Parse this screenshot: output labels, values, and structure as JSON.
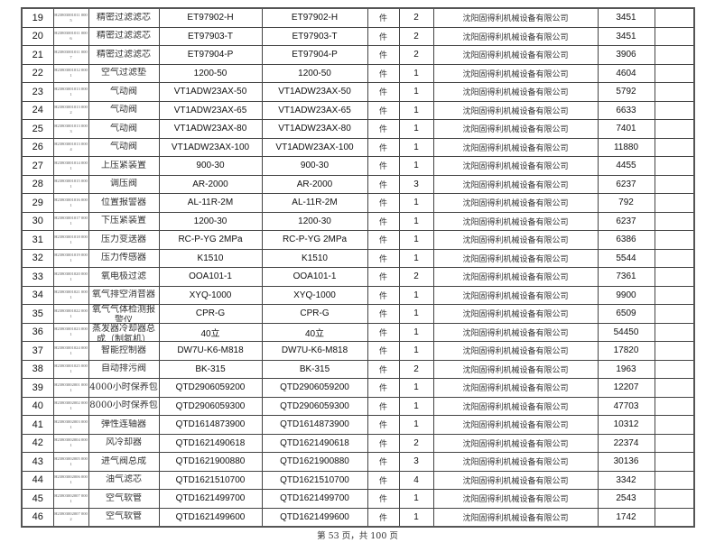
{
  "rows": [
    {
      "no": "19",
      "code": "H23803001011 0005",
      "name": "精密过滤滤芯",
      "model": "ET97902-H",
      "spec": "ET97902-H",
      "unit": "件",
      "qty": "2",
      "supplier": "沈阳固得利机械设备有限公司",
      "price": "3451",
      "note": ""
    },
    {
      "no": "20",
      "code": "H23803001011 0006",
      "name": "精密过滤滤芯",
      "model": "ET97903-T",
      "spec": "ET97903-T",
      "unit": "件",
      "qty": "2",
      "supplier": "沈阳固得利机械设备有限公司",
      "price": "3451",
      "note": ""
    },
    {
      "no": "21",
      "code": "H23803001011 0007",
      "name": "精密过滤滤芯",
      "model": "ET97904-P",
      "spec": "ET97904-P",
      "unit": "件",
      "qty": "2",
      "supplier": "沈阳固得利机械设备有限公司",
      "price": "3906",
      "note": ""
    },
    {
      "no": "22",
      "code": "H23803001012 0001",
      "name": "空气过滤垫",
      "model": "1200-50",
      "spec": "1200-50",
      "unit": "件",
      "qty": "1",
      "supplier": "沈阳固得利机械设备有限公司",
      "price": "4604",
      "note": ""
    },
    {
      "no": "23",
      "code": "H23803001013 0001",
      "name": "气动阀",
      "model": "VT1ADW23AX-50",
      "spec": "VT1ADW23AX-50",
      "unit": "件",
      "qty": "1",
      "supplier": "沈阳固得利机械设备有限公司",
      "price": "5792",
      "note": ""
    },
    {
      "no": "24",
      "code": "H23803001013 0002",
      "name": "气动阀",
      "model": "VT1ADW23AX-65",
      "spec": "VT1ADW23AX-65",
      "unit": "件",
      "qty": "1",
      "supplier": "沈阳固得利机械设备有限公司",
      "price": "6633",
      "note": ""
    },
    {
      "no": "25",
      "code": "H23803001013 0003",
      "name": "气动阀",
      "model": "VT1ADW23AX-80",
      "spec": "VT1ADW23AX-80",
      "unit": "件",
      "qty": "1",
      "supplier": "沈阳固得利机械设备有限公司",
      "price": "7401",
      "note": ""
    },
    {
      "no": "26",
      "code": "H23803001013 0004",
      "name": "气动阀",
      "model": "VT1ADW23AX-100",
      "spec": "VT1ADW23AX-100",
      "unit": "件",
      "qty": "1",
      "supplier": "沈阳固得利机械设备有限公司",
      "price": "11880",
      "note": ""
    },
    {
      "no": "27",
      "code": "H23803001014 0001",
      "name": "上压紧装置",
      "model": "900-30",
      "spec": "900-30",
      "unit": "件",
      "qty": "1",
      "supplier": "沈阳固得利机械设备有限公司",
      "price": "4455",
      "note": ""
    },
    {
      "no": "28",
      "code": "H23803001015 0001",
      "name": "调压阀",
      "model": "AR-2000",
      "spec": "AR-2000",
      "unit": "件",
      "qty": "3",
      "supplier": "沈阳固得利机械设备有限公司",
      "price": "6237",
      "note": ""
    },
    {
      "no": "29",
      "code": "H23803001016 0001",
      "name": "位置报警器",
      "model": "AL-11R-2M",
      "spec": "AL-11R-2M",
      "unit": "件",
      "qty": "1",
      "supplier": "沈阳固得利机械设备有限公司",
      "price": "792",
      "note": ""
    },
    {
      "no": "30",
      "code": "H23803001017 0001",
      "name": "下压紧装置",
      "model": "1200-30",
      "spec": "1200-30",
      "unit": "件",
      "qty": "1",
      "supplier": "沈阳固得利机械设备有限公司",
      "price": "6237",
      "note": ""
    },
    {
      "no": "31",
      "code": "H23803001018 0001",
      "name": "压力变送器",
      "model": "RC-P-YG 2MPa",
      "spec": "RC-P-YG 2MPa",
      "unit": "件",
      "qty": "1",
      "supplier": "沈阳固得利机械设备有限公司",
      "price": "6386",
      "note": ""
    },
    {
      "no": "32",
      "code": "H23803001019 0001",
      "name": "压力传感器",
      "model": "K1510",
      "spec": "K1510",
      "unit": "件",
      "qty": "1",
      "supplier": "沈阳固得利机械设备有限公司",
      "price": "5544",
      "note": ""
    },
    {
      "no": "33",
      "code": "H23803001020 0001",
      "name": "氧电极过滤",
      "model": "OOA101-1",
      "spec": "OOA101-1",
      "unit": "件",
      "qty": "2",
      "supplier": "沈阳固得利机械设备有限公司",
      "price": "7361",
      "note": ""
    },
    {
      "no": "34",
      "code": "H23803001021 0001",
      "name": "氧气排空消音器",
      "model": "XYQ-1000",
      "spec": "XYQ-1000",
      "unit": "件",
      "qty": "1",
      "supplier": "沈阳固得利机械设备有限公司",
      "price": "9900",
      "note": ""
    },
    {
      "no": "35",
      "code": "H23803001022 0001",
      "name": "氧气气体检测报警仪",
      "model": "CPR-G",
      "spec": "CPR-G",
      "unit": "件",
      "qty": "1",
      "supplier": "沈阳固得利机械设备有限公司",
      "price": "6509",
      "note": ""
    },
    {
      "no": "36",
      "code": "H23803001023 0001",
      "name": "蒸发器冷却器总成（制氮机）",
      "model": "40立",
      "spec": "40立",
      "unit": "件",
      "qty": "1",
      "supplier": "沈阳固得利机械设备有限公司",
      "price": "54450",
      "note": ""
    },
    {
      "no": "37",
      "code": "H23803001024 0001",
      "name": "智能控制器",
      "model": "DW7U-K6-M818",
      "spec": "DW7U-K6-M818",
      "unit": "件",
      "qty": "1",
      "supplier": "沈阳固得利机械设备有限公司",
      "price": "17820",
      "note": ""
    },
    {
      "no": "38",
      "code": "H23803001025 0001",
      "name": "自动排污阀",
      "model": "BK-315",
      "spec": "BK-315",
      "unit": "件",
      "qty": "2",
      "supplier": "沈阳固得利机械设备有限公司",
      "price": "1963",
      "note": ""
    },
    {
      "no": "39",
      "code": "H23803002001 0001",
      "name": "4000小时保养包",
      "model": "QTD2906059200",
      "spec": "QTD2906059200",
      "unit": "件",
      "qty": "1",
      "supplier": "沈阳固得利机械设备有限公司",
      "price": "12207",
      "note": ""
    },
    {
      "no": "40",
      "code": "H23803002002 0001",
      "name": "8000小时保养包",
      "model": "QTD2906059300",
      "spec": "QTD2906059300",
      "unit": "件",
      "qty": "1",
      "supplier": "沈阳固得利机械设备有限公司",
      "price": "47703",
      "note": ""
    },
    {
      "no": "41",
      "code": "H23803002003 0001",
      "name": "弹性连轴器",
      "model": "QTD1614873900",
      "spec": "QTD1614873900",
      "unit": "件",
      "qty": "1",
      "supplier": "沈阳固得利机械设备有限公司",
      "price": "10312",
      "note": ""
    },
    {
      "no": "42",
      "code": "H23803002004 0001",
      "name": "风冷却器",
      "model": "QTD1621490618",
      "spec": "QTD1621490618",
      "unit": "件",
      "qty": "2",
      "supplier": "沈阳固得利机械设备有限公司",
      "price": "22374",
      "note": ""
    },
    {
      "no": "43",
      "code": "H23803002005 0001",
      "name": "进气阀总成",
      "model": "QTD1621900880",
      "spec": "QTD1621900880",
      "unit": "件",
      "qty": "3",
      "supplier": "沈阳固得利机械设备有限公司",
      "price": "30136",
      "note": ""
    },
    {
      "no": "44",
      "code": "H23803002006 0001",
      "name": "油气滤芯",
      "model": "QTD1621510700",
      "spec": "QTD1621510700",
      "unit": "件",
      "qty": "4",
      "supplier": "沈阳固得利机械设备有限公司",
      "price": "3342",
      "note": ""
    },
    {
      "no": "45",
      "code": "H23803002007 0001",
      "name": "空气软管",
      "model": "QTD1621499700",
      "spec": "QTD1621499700",
      "unit": "件",
      "qty": "1",
      "supplier": "沈阳固得利机械设备有限公司",
      "price": "2543",
      "note": ""
    },
    {
      "no": "46",
      "code": "H23803002007 0002",
      "name": "空气软管",
      "model": "QTD1621499600",
      "spec": "QTD1621499600",
      "unit": "件",
      "qty": "1",
      "supplier": "沈阳固得利机械设备有限公司",
      "price": "1742",
      "note": ""
    }
  ],
  "footer": "第 53 页，共 100 页"
}
